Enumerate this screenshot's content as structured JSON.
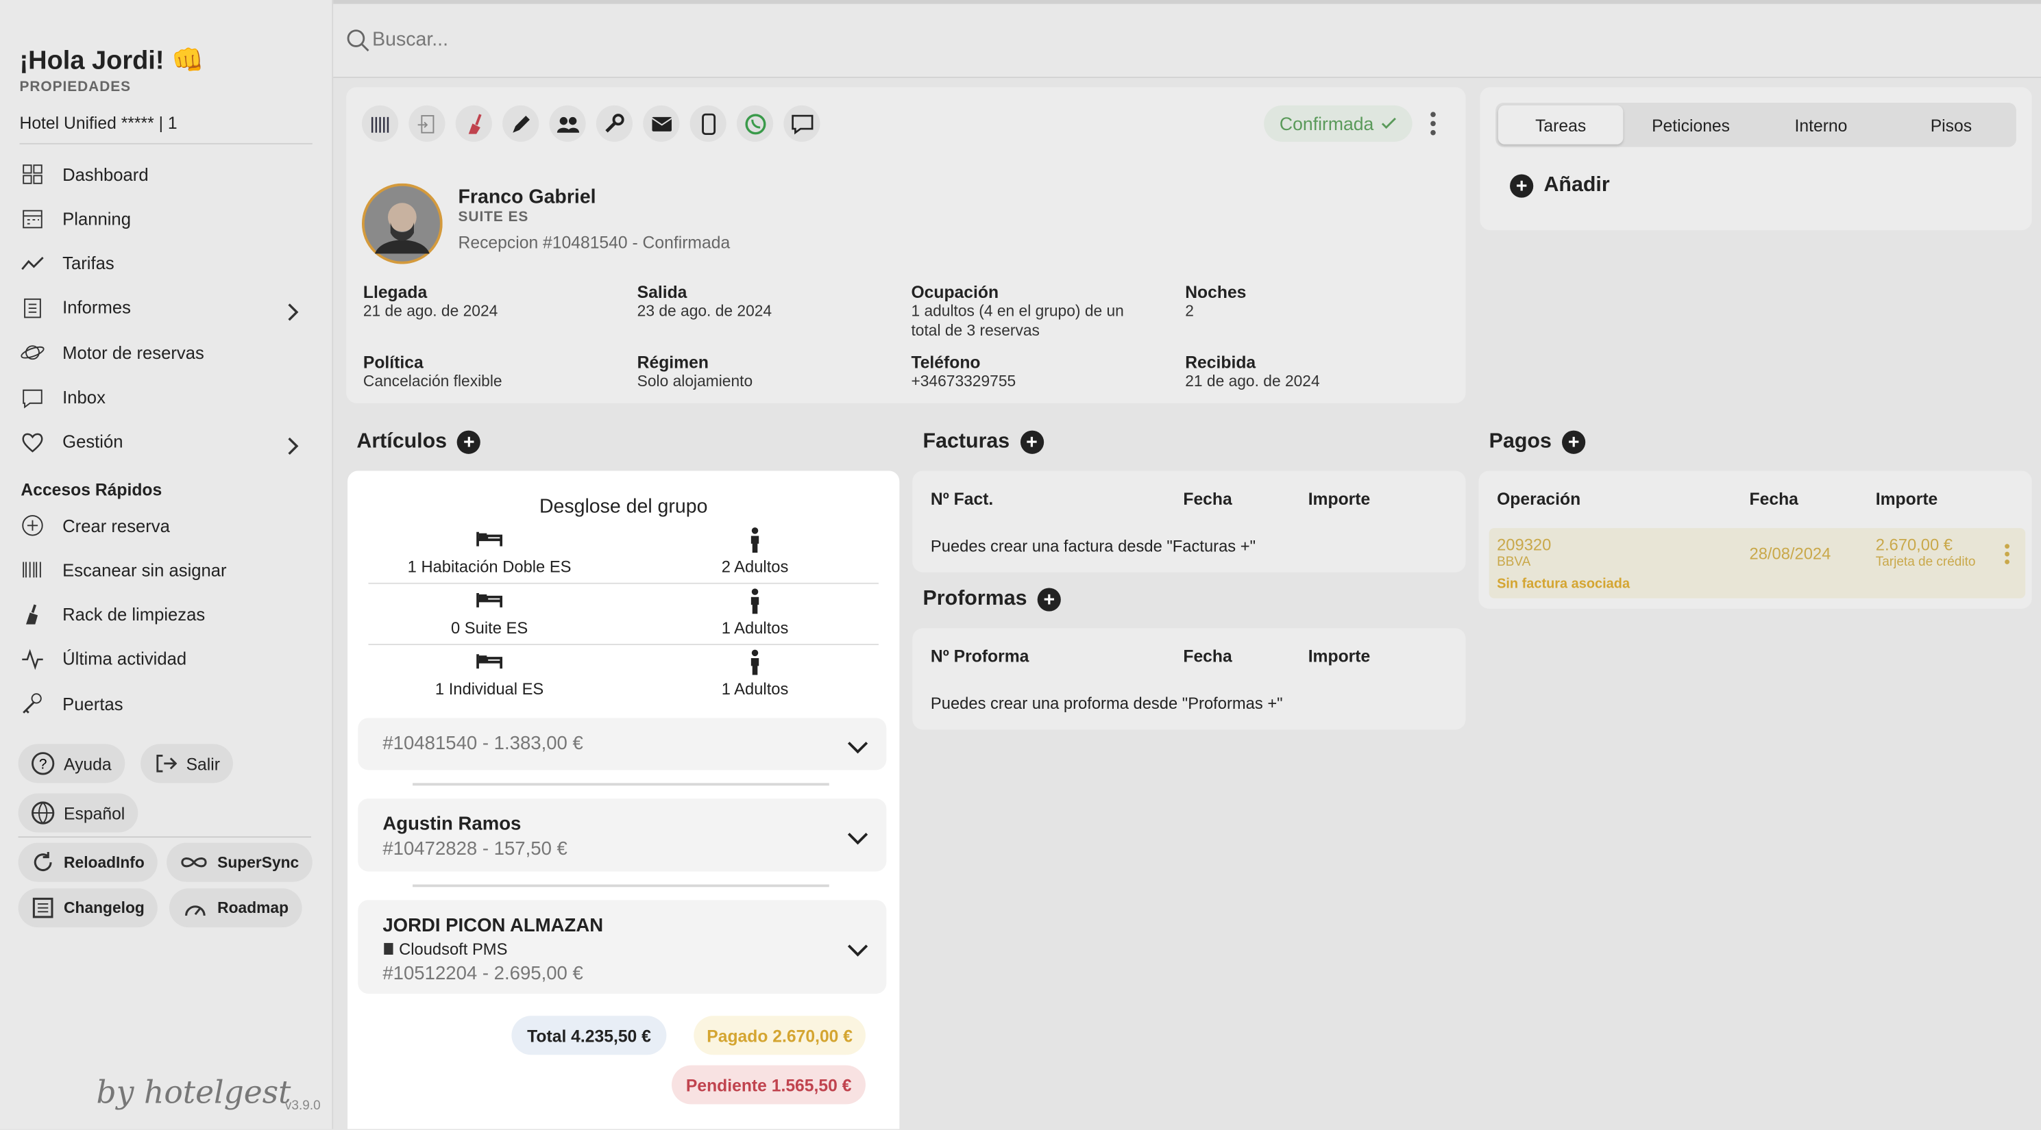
{
  "sidebar": {
    "greeting": "¡Hola Jordi! 👊",
    "section": "PROPIEDADES",
    "property": "Hotel Unified ***** | 1",
    "nav": [
      "Dashboard",
      "Planning",
      "Tarifas",
      "Informes",
      "Motor de reservas",
      "Inbox",
      "Gestión"
    ],
    "quick_title": "Accesos Rápidos",
    "quick": [
      "Crear reserva",
      "Escanear sin asignar",
      "Rack de limpiezas",
      "Última actividad",
      "Puertas"
    ],
    "buttons": [
      "Ayuda",
      "Salir",
      "Español",
      "ReloadInfo",
      "SuperSync",
      "Changelog",
      "Roadmap"
    ],
    "brand": "by hotelgest",
    "version": "v3.9.0"
  },
  "search": {
    "placeholder": "Buscar..."
  },
  "reservation": {
    "status": "Confirmada",
    "guest": "Franco Gabriel",
    "room": "SUITE ES",
    "subtitle": "Recepcion #10481540 - Confirmada",
    "fields": [
      {
        "label": "Llegada",
        "value": "21 de ago. de 2024"
      },
      {
        "label": "Salida",
        "value": "23 de ago. de 2024"
      },
      {
        "label": "Ocupación",
        "value": "1 adultos (4 en el grupo) de un total de 3 reservas"
      },
      {
        "label": "Noches",
        "value": "2"
      },
      {
        "label": "Política",
        "value": "Cancelación flexible"
      },
      {
        "label": "Régimen",
        "value": "Solo alojamiento"
      },
      {
        "label": "Teléfono",
        "value": "+34673329755"
      },
      {
        "label": "Recibida",
        "value": "21 de ago. de 2024"
      }
    ]
  },
  "tasks": {
    "tabs": [
      "Tareas",
      "Peticiones",
      "Interno",
      "Pisos"
    ],
    "add": "Añadir"
  },
  "articles": {
    "title": "Artículos",
    "group_title": "Desglose del grupo",
    "rooms": [
      {
        "room": "1 Habitación Doble ES",
        "guests": "2 Adultos"
      },
      {
        "room": "0 Suite ES",
        "guests": "1 Adultos"
      },
      {
        "room": "1 Individual ES",
        "guests": "1 Adultos"
      }
    ],
    "bookings": [
      {
        "ref": "#10481540 - 1.383,00 €"
      },
      {
        "name": "Agustin Ramos",
        "ref": "#10472828 - 157,50 €"
      },
      {
        "name": "JORDI PICON ALMAZAN",
        "source": "Cloudsoft PMS",
        "ref": "#10512204 - 2.695,00 €"
      }
    ],
    "total": "Total 4.235,50 €",
    "paid": "Pagado 2.670,00 €",
    "pending": "Pendiente 1.565,50 €"
  },
  "invoices": {
    "title": "Facturas",
    "columns": [
      "Nº Fact.",
      "Fecha",
      "Importe"
    ],
    "empty": "Puedes crear una factura desde \"Facturas +\""
  },
  "proformas": {
    "title": "Proformas",
    "columns": [
      "Nº Proforma",
      "Fecha",
      "Importe"
    ],
    "empty": "Puedes crear una proforma desde \"Proformas +\""
  },
  "payments": {
    "title": "Pagos",
    "columns": [
      "Operación",
      "Fecha",
      "Importe"
    ],
    "rows": [
      {
        "id": "209320",
        "bank": "BBVA",
        "note": "Sin factura asociada",
        "date": "28/08/2024",
        "amount": "2.670,00 €",
        "method": "Tarjeta de crédito"
      }
    ]
  }
}
